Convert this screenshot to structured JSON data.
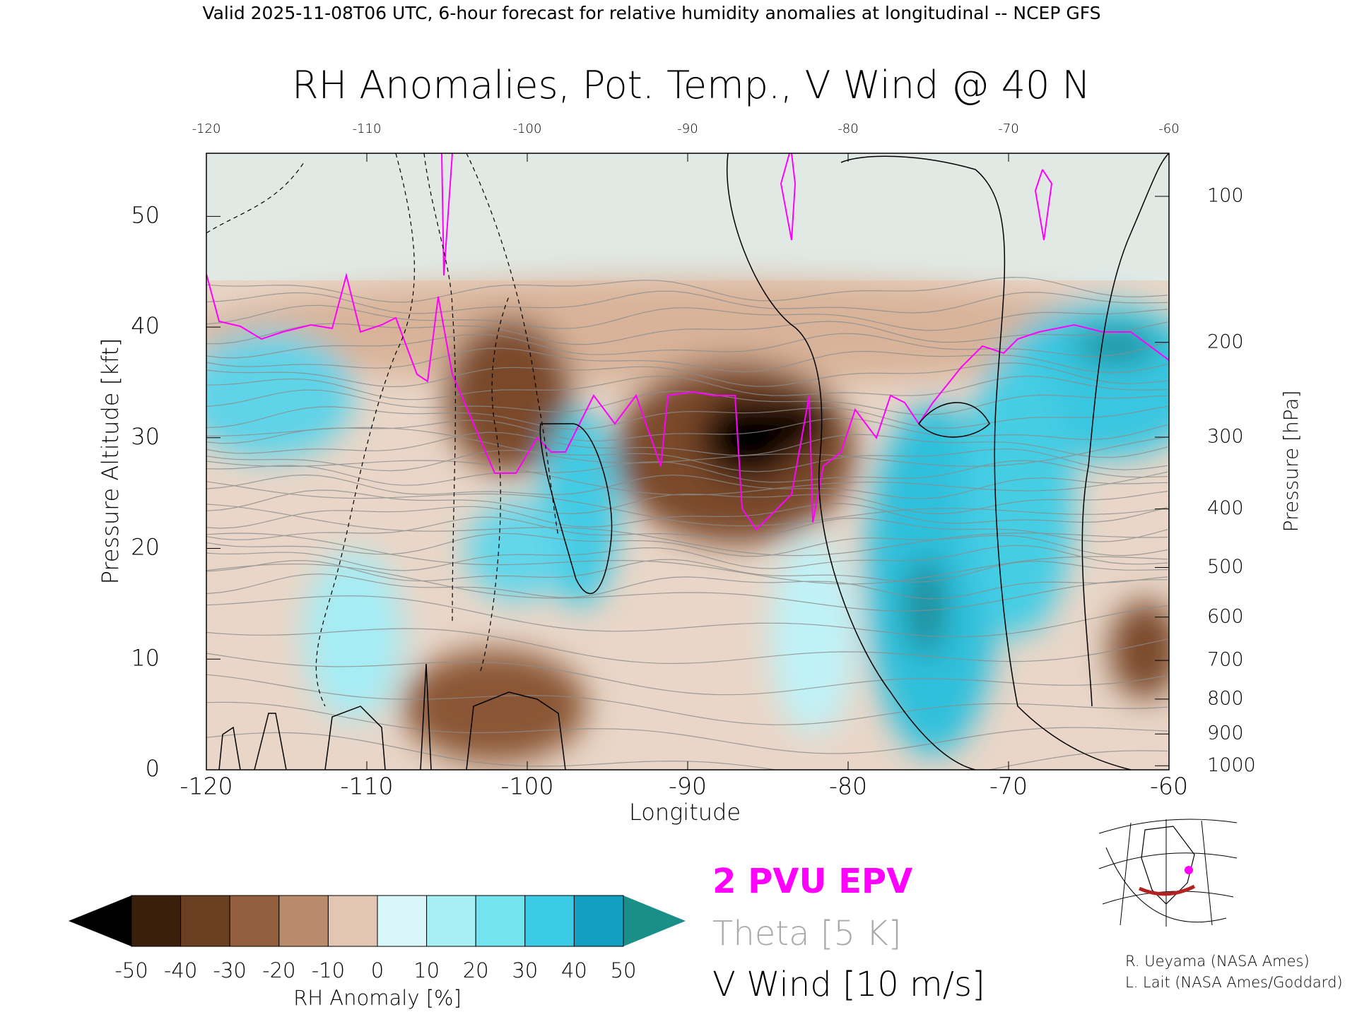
{
  "chart_data": {
    "type": "contour",
    "header": "Valid 2025-11-08T06 UTC, 6-hour forecast for relative humidity anomalies at longitudinal -- NCEP GFS",
    "title": "RH Anomalies, Pot. Temp., V Wind @ 40 N",
    "xlabel": "Longitude",
    "ylabel": "Pressure Altitude [kft]",
    "y2label": "Pressure [hPa]",
    "xlim": [
      -120,
      -60
    ],
    "xticks": [
      -120,
      -110,
      -100,
      -90,
      -80,
      -70,
      -60
    ],
    "ylim": [
      0,
      55.7
    ],
    "yticks": [
      0,
      10,
      20,
      30,
      40,
      50
    ],
    "y2ticks": [
      100,
      200,
      300,
      400,
      500,
      600,
      700,
      800,
      900,
      1000
    ],
    "colorbar": {
      "label": "RH Anomaly [%]",
      "ticks": [
        -50,
        -40,
        -30,
        -20,
        -10,
        0,
        10,
        20,
        30,
        40,
        50
      ],
      "colors": [
        "#3b1f0d",
        "#6a3e21",
        "#93603f",
        "#b98b6c",
        "#e2c6b3",
        "#d9f7f8",
        "#a8eff5",
        "#74e3f0",
        "#3bcbe5",
        "#139fc2"
      ],
      "extend_colors": [
        "#000000",
        "#1a8f8a"
      ]
    },
    "legend": [
      {
        "label": "2 PVU EPV",
        "color": "#ff00ff"
      },
      {
        "label": "Theta [5 K]",
        "color": "#aaaaaa"
      },
      {
        "label": "V Wind [10 m/s]",
        "color": "#000000"
      }
    ],
    "credits": [
      "R. Ueyama (NASA Ames)",
      "L. Lait (NASA Ames/Goddard)"
    ]
  }
}
